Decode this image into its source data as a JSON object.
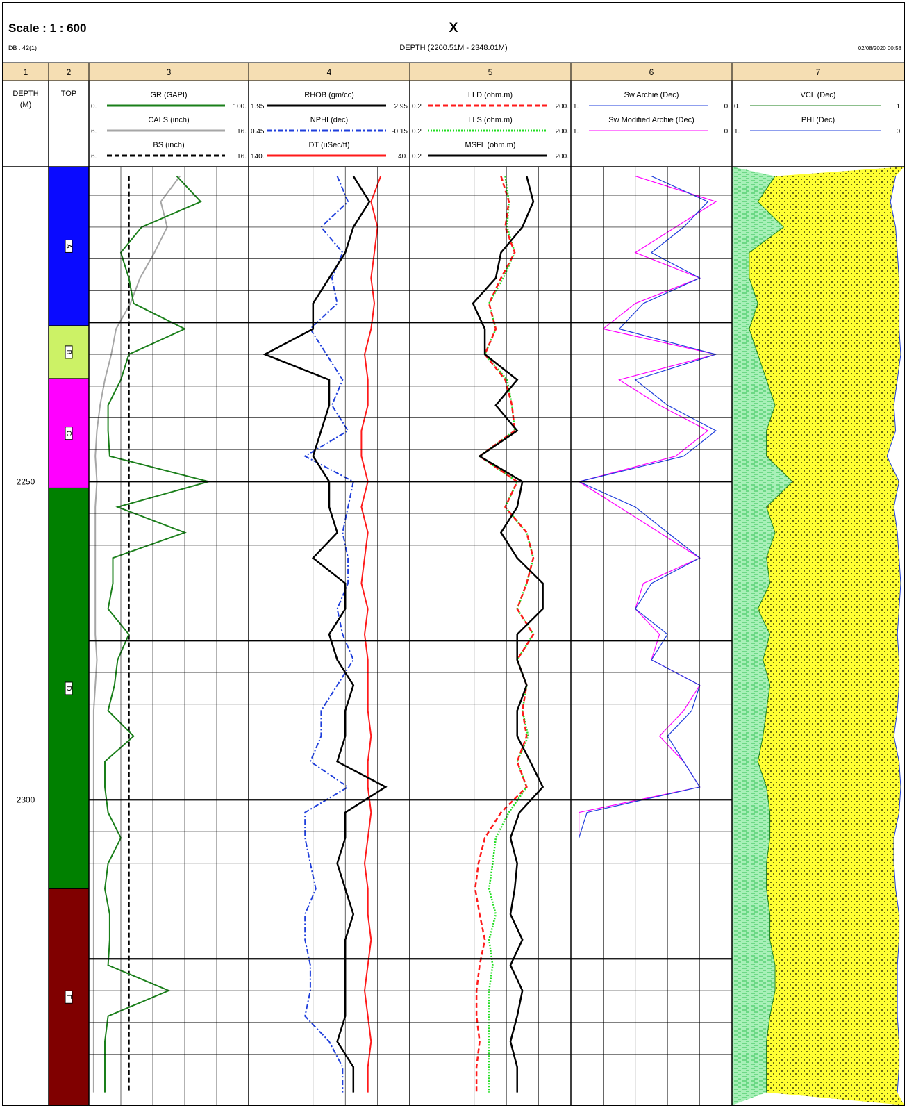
{
  "header": {
    "scale": "Scale : 1 : 600",
    "db": "DB : 42(1)",
    "well": "X",
    "depth_range": "DEPTH (2200.51M - 2348.01M)",
    "date": "02/08/2020 00:58"
  },
  "track_numbers": [
    "1",
    "2",
    "3",
    "4",
    "5",
    "6",
    "7"
  ],
  "colors": {
    "header_band": "#f5deb3",
    "grid": "#000000",
    "GR": "#1a7f1a",
    "CALS": "#a6a6a6",
    "BS": "#000000",
    "RHOB": "#000000",
    "NPHI": "#1f3fdc",
    "DT": "#ff1a1a",
    "LLD": "#ff1a1a",
    "LLS": "#22dd22",
    "MSFL": "#000000",
    "Sw_Archie": "#1f3fdc",
    "Sw_Modified": "#ff00ff",
    "sw_fill": "#1f6b2a",
    "clay_fill": "#a8f0b8",
    "pore_fill": "#ffff33",
    "PHI": "#1f3fdc"
  },
  "depth_column": {
    "title": "DEPTH",
    "unit": "(M)"
  },
  "top_column": {
    "title": "TOP"
  },
  "tracks": [
    {
      "id": "3",
      "curves": [
        {
          "name": "GR (GAPI)",
          "left": "0.",
          "right": "100.",
          "style": "solid",
          "color_key": "GR"
        },
        {
          "name": "CALS (inch)",
          "left": "6.",
          "right": "16.",
          "style": "solid",
          "color_key": "CALS"
        },
        {
          "name": "BS (inch)",
          "left": "6.",
          "right": "16.",
          "style": "dashed",
          "color_key": "BS"
        }
      ]
    },
    {
      "id": "4",
      "curves": [
        {
          "name": "RHOB (gm/cc)",
          "left": "1.95",
          "right": "2.95",
          "style": "solid",
          "color_key": "RHOB"
        },
        {
          "name": "NPHI (dec)",
          "left": "0.45",
          "right": "-0.15",
          "style": "dashdot",
          "color_key": "NPHI"
        },
        {
          "name": "DT (uSec/ft)",
          "left": "140.",
          "right": "40.",
          "style": "solid",
          "color_key": "DT"
        }
      ]
    },
    {
      "id": "5",
      "curves": [
        {
          "name": "LLD (ohm.m)",
          "left": "0.2",
          "right": "200.",
          "style": "dashed",
          "color_key": "LLD"
        },
        {
          "name": "LLS (ohm.m)",
          "left": "0.2",
          "right": "200.",
          "style": "dotted",
          "color_key": "LLS"
        },
        {
          "name": "MSFL (ohm.m)",
          "left": "0.2",
          "right": "200.",
          "style": "solid",
          "color_key": "MSFL"
        }
      ]
    },
    {
      "id": "6",
      "curves": [
        {
          "name": "Sw  Archie (Dec)",
          "left": "1.",
          "right": "0.",
          "style": "thin",
          "color_key": "Sw_Archie"
        },
        {
          "name": "Sw  Modified Archie (Dec)",
          "left": "1.",
          "right": "0.",
          "style": "thin",
          "color_key": "Sw_Modified"
        }
      ]
    },
    {
      "id": "7",
      "curves": [
        {
          "name": "VCL (Dec)",
          "left": "0.",
          "right": "1.",
          "style": "thin",
          "color_key": "GR"
        },
        {
          "name": "PHI (Dec)",
          "left": "1.",
          "right": "0.",
          "style": "thin",
          "color_key": "PHI"
        }
      ]
    }
  ],
  "chart_data": {
    "type": "line",
    "depth_labels": [
      "2250",
      "2300"
    ],
    "depth_range": [
      2200.51,
      2348.01
    ],
    "zones": [
      {
        "name": "A",
        "top": 2200.51,
        "base": 2225.5,
        "color": "#0a0aff"
      },
      {
        "name": "B",
        "top": 2225.5,
        "base": 2233.8,
        "color": "#ccf266"
      },
      {
        "name": "C",
        "top": 2233.8,
        "base": 2251.0,
        "color": "#ff00ff"
      },
      {
        "name": "D",
        "top": 2251.0,
        "base": 2314.0,
        "color": "#008000"
      },
      {
        "name": "E",
        "top": 2314.0,
        "base": 2348.01,
        "color": "#800000"
      }
    ],
    "depth": [
      2202,
      2206,
      2210,
      2214,
      2218,
      2222,
      2226,
      2230,
      2234,
      2238,
      2242,
      2246,
      2250,
      2254,
      2258,
      2262,
      2266,
      2270,
      2274,
      2278,
      2282,
      2286,
      2290,
      2294,
      2298,
      2302,
      2306,
      2310,
      2314,
      2318,
      2322,
      2326,
      2330,
      2334,
      2338,
      2342,
      2346
    ],
    "series": [
      {
        "name": "GR (GAPI)",
        "values": [
          55,
          70,
          33,
          20,
          25,
          28,
          60,
          25,
          20,
          12,
          12,
          13,
          75,
          18,
          60,
          15,
          15,
          12,
          25,
          18,
          16,
          12,
          28,
          10,
          10,
          12,
          20,
          12,
          10,
          13,
          13,
          12,
          50,
          12,
          10,
          10,
          10
        ]
      },
      {
        "name": "CALS (inch)",
        "values": [
          11.7,
          10.5,
          10.9,
          10.1,
          9.2,
          8.6,
          7.7,
          7.4,
          7.0,
          6.7,
          6.5,
          6.4,
          6.5,
          6.4,
          6.4,
          6.4,
          6.4,
          6.4,
          6.4,
          6.5,
          6.4,
          6.3,
          6.3,
          6.3,
          6.3,
          6.3,
          6.3,
          6.3,
          6.3,
          6.3,
          6.3,
          6.3,
          6.3,
          6.3,
          6.3,
          6.3,
          6.3
        ]
      },
      {
        "name": "BS (inch)",
        "values": [
          8.5,
          8.5,
          8.5,
          8.5,
          8.5,
          8.5,
          8.5,
          8.5,
          8.5,
          8.5,
          8.5,
          8.5,
          8.5,
          8.5,
          8.5,
          8.5,
          8.5,
          8.5,
          8.5,
          8.5,
          8.5,
          8.5,
          8.5,
          8.5,
          8.5,
          8.5,
          8.5,
          8.5,
          8.5,
          8.5,
          8.5,
          8.5,
          8.5,
          8.5,
          8.5,
          8.5,
          8.5
        ]
      },
      {
        "name": "RHOB (gm/cc)",
        "values": [
          2.6,
          2.7,
          2.6,
          2.55,
          2.45,
          2.35,
          2.35,
          2.05,
          2.45,
          2.45,
          2.4,
          2.35,
          2.45,
          2.45,
          2.5,
          2.35,
          2.55,
          2.55,
          2.45,
          2.5,
          2.6,
          2.55,
          2.55,
          2.5,
          2.8,
          2.55,
          2.55,
          2.5,
          2.55,
          2.6,
          2.55,
          2.55,
          2.55,
          2.55,
          2.5,
          2.6,
          2.6
        ]
      },
      {
        "name": "NPHI (dec)",
        "values": [
          0.12,
          0.08,
          0.18,
          0.1,
          0.14,
          0.12,
          0.22,
          0.16,
          0.1,
          0.14,
          0.08,
          0.24,
          0.06,
          0.08,
          0.1,
          0.08,
          0.08,
          0.12,
          0.1,
          0.06,
          0.12,
          0.18,
          0.18,
          0.22,
          0.08,
          0.24,
          0.24,
          0.22,
          0.2,
          0.24,
          0.24,
          0.22,
          0.22,
          0.24,
          0.15,
          0.1,
          0.1
        ]
      },
      {
        "name": "DT (uSec/ft)",
        "values": [
          58,
          64,
          60,
          62,
          64,
          62,
          64,
          68,
          66,
          66,
          70,
          70,
          66,
          70,
          66,
          68,
          70,
          66,
          68,
          66,
          66,
          66,
          64,
          66,
          66,
          64,
          66,
          68,
          66,
          66,
          64,
          66,
          68,
          66,
          64,
          66,
          66
        ]
      },
      {
        "name": "LLD (ohm.m)",
        "values": [
          10,
          14,
          12,
          18,
          10,
          6,
          8,
          5,
          12,
          16,
          18,
          4,
          20,
          12,
          30,
          40,
          30,
          20,
          40,
          20,
          30,
          25,
          30,
          20,
          30,
          10,
          5,
          3.8,
          3.3,
          4,
          5,
          4,
          3.5,
          3.5,
          4,
          3.5,
          3.5
        ]
      },
      {
        "name": "LLS (ohm.m)",
        "values": [
          12,
          14,
          13,
          18,
          11,
          6,
          8,
          5,
          13,
          16,
          18,
          4,
          20,
          12,
          30,
          40,
          30,
          20,
          40,
          20,
          30,
          25,
          32,
          20,
          30,
          14,
          8,
          7,
          6,
          8,
          6,
          7,
          6,
          6,
          6,
          6,
          6
        ]
      },
      {
        "name": "MSFL (ohm.m)",
        "values": [
          30,
          40,
          25,
          10,
          8,
          3,
          5,
          5,
          20,
          8,
          20,
          4,
          25,
          20,
          10,
          20,
          60,
          60,
          20,
          20,
          30,
          20,
          20,
          35,
          60,
          22,
          15,
          20,
          18,
          15,
          25,
          15,
          25,
          20,
          15,
          20,
          20
        ]
      },
      {
        "name": "Sw  Archie (Dec)",
        "values": [
          0.5,
          0.15,
          0.3,
          0.5,
          0.2,
          0.55,
          0.7,
          0.1,
          0.6,
          0.4,
          0.1,
          0.3,
          0.95,
          0.6,
          0.4,
          0.2,
          0.5,
          0.6,
          0.4,
          0.5,
          0.2,
          0.25,
          0.4,
          0.3,
          0.2,
          0.9,
          0.95,
          null,
          null,
          null,
          null,
          null,
          null,
          null,
          null,
          null,
          null
        ]
      },
      {
        "name": "Sw  Modified Archie (Dec)",
        "values": [
          0.6,
          0.1,
          0.35,
          0.6,
          0.2,
          0.6,
          0.8,
          0.1,
          0.7,
          0.45,
          0.15,
          0.35,
          0.95,
          0.7,
          0.45,
          0.2,
          0.55,
          0.6,
          0.45,
          0.5,
          0.2,
          0.3,
          0.45,
          0.3,
          0.2,
          0.95,
          0.95,
          null,
          null,
          null,
          null,
          null,
          null,
          null,
          null,
          null,
          null
        ]
      },
      {
        "name": "VCL (Dec)",
        "values": [
          0.25,
          0.15,
          0.3,
          0.1,
          0.1,
          0.15,
          0.1,
          0.15,
          0.2,
          0.25,
          0.2,
          0.2,
          0.35,
          0.2,
          0.25,
          0.2,
          0.22,
          0.15,
          0.22,
          0.18,
          0.22,
          0.2,
          0.18,
          0.15,
          0.2,
          0.22,
          0.22,
          0.2,
          0.2,
          0.22,
          0.22,
          0.25,
          0.25,
          0.22,
          0.2,
          0.2,
          0.2
        ]
      },
      {
        "name": "PHI (Dec)",
        "values": [
          0.05,
          0.08,
          0.05,
          0.04,
          0.03,
          0.03,
          0.03,
          0.02,
          0.04,
          0.06,
          0.05,
          0.1,
          0.03,
          0.06,
          0.04,
          0.03,
          0.02,
          0.03,
          0.04,
          0.03,
          0.03,
          0.04,
          0.06,
          0.03,
          0.02,
          0.03,
          0.06,
          0.06,
          0.05,
          0.03,
          0.03,
          0.04,
          0.04,
          0.04,
          0.03,
          0.03,
          0.04
        ]
      }
    ]
  }
}
